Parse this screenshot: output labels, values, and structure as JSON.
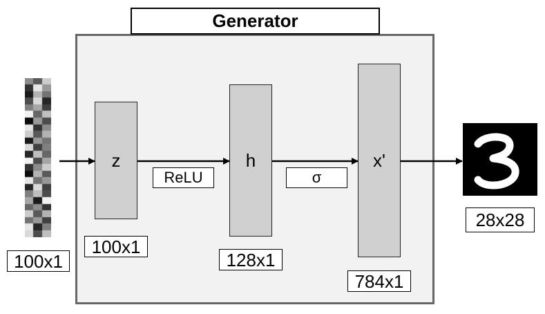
{
  "generator": {
    "title": "Generator"
  },
  "input": {
    "dim": "100x1"
  },
  "layers": [
    {
      "name": "z",
      "dim": "100x1"
    },
    {
      "name": "h",
      "dim": "128x1"
    },
    {
      "name": "x'",
      "dim": "784x1"
    }
  ],
  "activations": [
    "ReLU",
    "σ"
  ],
  "output": {
    "dim": "28x28"
  },
  "noise_values": [
    0.55,
    0.35,
    0.8,
    0.2,
    0.9,
    0.6,
    0.1,
    0.7,
    0.45,
    0.3,
    0.85,
    0.15,
    0.5,
    0.65,
    0.25,
    0.95,
    0.4,
    0.75,
    0.05,
    0.6,
    0.3,
    0.9,
    0.2,
    0.55,
    0.8,
    0.35,
    0.7,
    0.1,
    0.6,
    0.45,
    0.85,
    0.25,
    0.5,
    0.15,
    0.75,
    0.4,
    0.95,
    0.3,
    0.65,
    0.2,
    0.55,
    0.8,
    0.05,
    0.7,
    0.35,
    0.9,
    0.45,
    0.6,
    0.15,
    0.85,
    0.25,
    0.5,
    0.75,
    0.3,
    0.65,
    0.1,
    0.95,
    0.4,
    0.55,
    0.2,
    0.8,
    0.35,
    0.7,
    0.45,
    0.6,
    0.25,
    0.9,
    0.15,
    0.5,
    0.85,
    0.3,
    0.75
  ]
}
